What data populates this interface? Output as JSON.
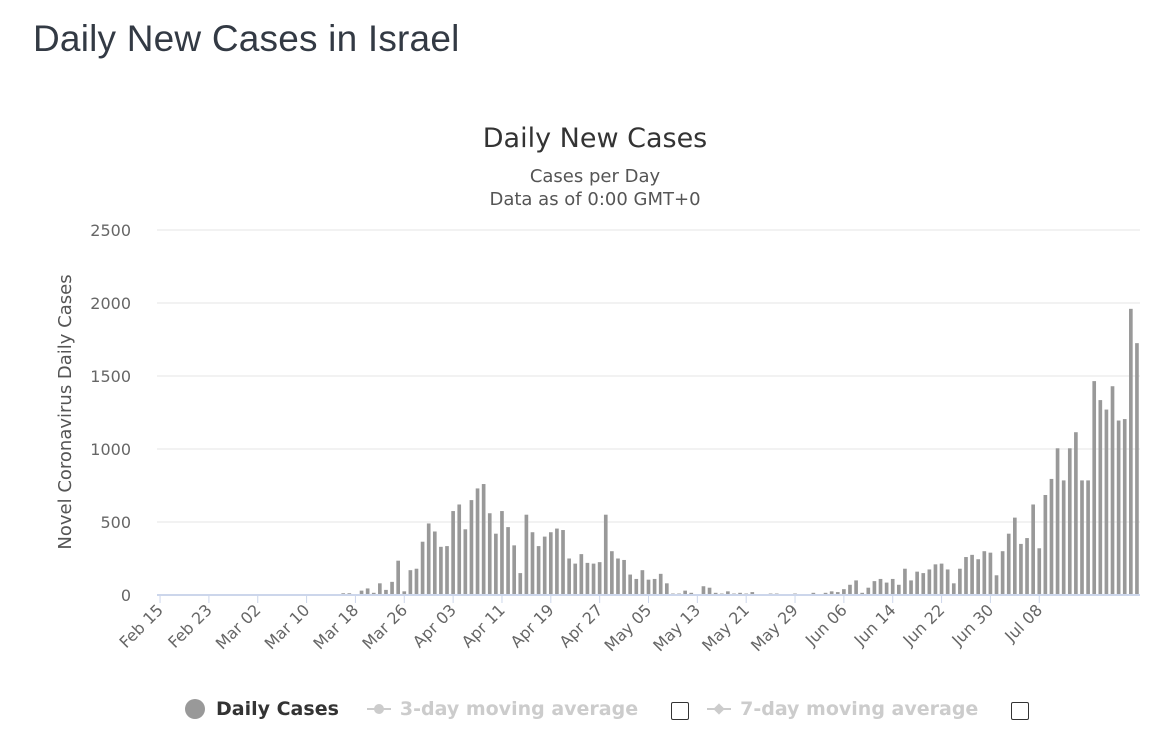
{
  "page": {
    "title": "Daily New Cases in Israel"
  },
  "chart_data": {
    "type": "bar",
    "title": "Daily New Cases",
    "subtitle_line1": "Cases per Day",
    "subtitle_line2": "Data as of 0:00 GMT+0",
    "ylabel": "Novel Coronavirus Daily Cases",
    "xlabel": "",
    "ylim": [
      0,
      2500
    ],
    "yticks": [
      0,
      500,
      1000,
      1500,
      2000,
      2500
    ],
    "start_date": "Feb 15",
    "xtick_labels": [
      "Feb 15",
      "Feb 23",
      "Mar 02",
      "Mar 10",
      "Mar 18",
      "Mar 26",
      "Apr 03",
      "Apr 11",
      "Apr 19",
      "Apr 27",
      "May 05",
      "May 13",
      "May 21",
      "May 29",
      "Jun 06",
      "Jun 14",
      "Jun 22",
      "Jun 30",
      "Jul 08"
    ],
    "xtick_interval_days": 8,
    "values": [
      0,
      0,
      0,
      0,
      0,
      0,
      0,
      0,
      0,
      0,
      0,
      0,
      0,
      0,
      0,
      0,
      0,
      0,
      0,
      0,
      0,
      0,
      0,
      0,
      0,
      0,
      0,
      0,
      0,
      0,
      12,
      12,
      0,
      30,
      45,
      15,
      80,
      35,
      90,
      235,
      25,
      170,
      180,
      365,
      490,
      435,
      330,
      335,
      575,
      620,
      450,
      650,
      730,
      760,
      560,
      420,
      575,
      465,
      340,
      150,
      550,
      430,
      335,
      400,
      430,
      455,
      445,
      250,
      215,
      280,
      220,
      215,
      225,
      550,
      300,
      250,
      240,
      140,
      110,
      170,
      105,
      110,
      145,
      80,
      10,
      10,
      30,
      15,
      5,
      60,
      50,
      15,
      10,
      25,
      10,
      15,
      10,
      20,
      5,
      5,
      10,
      10,
      5,
      5,
      10,
      5,
      5,
      15,
      5,
      15,
      25,
      20,
      40,
      70,
      100,
      15,
      50,
      95,
      110,
      85,
      110,
      70,
      180,
      100,
      160,
      150,
      175,
      210,
      215,
      175,
      80,
      180,
      260,
      275,
      245,
      300,
      290,
      135,
      300,
      420,
      530,
      350,
      390,
      620,
      320,
      685,
      795,
      1005,
      785,
      1005,
      1115,
      785,
      785,
      1465,
      1335,
      1270,
      1430,
      1195,
      1205,
      1960,
      1725
    ],
    "series_name": "Daily Cases",
    "legend": [
      {
        "label": "Daily Cases",
        "active": true
      },
      {
        "label": "3-day moving average",
        "active": false
      },
      {
        "label": "7-day moving average",
        "active": false
      }
    ],
    "colors": {
      "bar": "#999999",
      "grid": "#e6e6e6",
      "axis": "#ccd6eb",
      "text": "#333333",
      "ticks": "#666666"
    }
  }
}
